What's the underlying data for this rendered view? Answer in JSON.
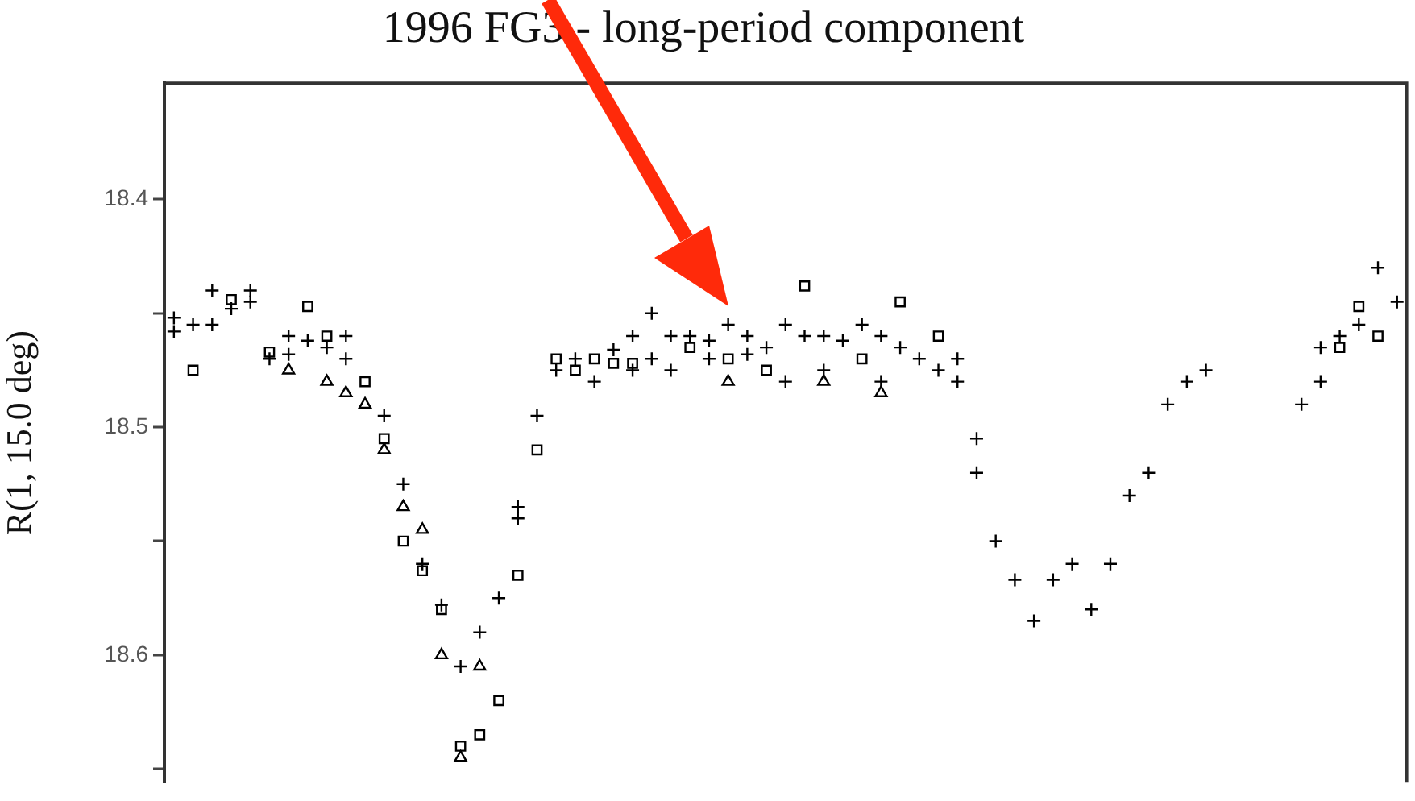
{
  "chart_data": {
    "type": "scatter",
    "title": "1996 FG3 - long-period component",
    "ylabel": "R(1, 15.0 deg)",
    "categories": [
      null,
      null,
      null,
      null,
      null,
      null,
      null,
      null,
      null,
      null,
      null,
      null,
      null,
      null,
      null,
      null,
      null,
      null,
      null,
      null,
      null,
      null,
      null,
      null,
      null,
      null,
      null,
      null,
      null,
      null,
      null,
      null,
      null,
      null,
      null,
      null,
      null,
      null,
      null,
      null,
      null,
      null,
      null,
      null,
      null,
      null,
      null,
      null,
      null,
      null,
      null,
      null,
      null,
      null,
      null,
      null,
      null,
      null,
      null,
      null,
      null,
      null,
      null,
      null,
      null
    ],
    "ylim": [
      18.656,
      18.349
    ],
    "yticks": [
      18.4,
      {
        "value": 18.45,
        "label": null
      },
      18.5,
      {
        "value": 18.55,
        "label": null
      },
      18.6,
      {
        "value": 18.65,
        "label": null
      }
    ],
    "tick_labels": "y",
    "grid": false,
    "legend": false,
    "series": [
      {
        "color": "#000000",
        "marker": "cross",
        "values": [
          18.452,
          18.455,
          18.44,
          18.448,
          18.445,
          18.47,
          18.46,
          null,
          18.465,
          18.46,
          null,
          null,
          null,
          18.56,
          null,
          null,
          null,
          null,
          18.54,
          null,
          null,
          null,
          null,
          18.466,
          18.475,
          18.45,
          18.46,
          18.46,
          18.462,
          18.455,
          18.46,
          18.465,
          18.455,
          18.46,
          18.46,
          18.462,
          18.455,
          18.46,
          18.465,
          18.47,
          18.475,
          18.48,
          18.52,
          18.55,
          18.567,
          18.585,
          18.567,
          18.56,
          18.58,
          18.56,
          18.53,
          18.52,
          18.49,
          18.48,
          18.475,
          null,
          null,
          null,
          null,
          18.49,
          18.48,
          18.46,
          18.455,
          18.43,
          18.445
        ]
      },
      {
        "color": "#000000",
        "marker": "cross",
        "values": [
          18.458,
          null,
          18.455,
          null,
          18.44,
          null,
          18.468,
          18.462,
          null,
          18.47,
          null,
          18.495,
          18.525,
          null,
          18.578,
          18.605,
          18.59,
          18.575,
          18.535,
          18.495,
          18.475,
          18.47,
          18.48,
          null,
          18.46,
          18.47,
          18.475,
          null,
          18.47,
          null,
          18.468,
          null,
          18.48,
          null,
          18.475,
          null,
          null,
          18.48,
          null,
          null,
          null,
          18.47,
          18.505,
          null,
          null,
          null,
          null,
          null,
          null,
          null,
          null,
          null,
          null,
          null,
          null,
          null,
          null,
          null,
          null,
          null,
          18.465,
          null,
          null,
          null,
          null
        ]
      },
      {
        "color": "#000000",
        "marker": "square",
        "values": [
          null,
          18.475,
          null,
          18.444,
          null,
          18.467,
          null,
          18.447,
          18.46,
          null,
          18.48,
          18.505,
          18.55,
          18.563,
          18.58,
          18.64,
          18.635,
          18.62,
          18.565,
          18.51,
          18.47,
          18.475,
          18.47,
          18.472,
          18.472,
          null,
          null,
          18.465,
          null,
          18.47,
          null,
          18.475,
          null,
          18.438,
          null,
          null,
          18.47,
          null,
          18.445,
          null,
          18.46,
          null,
          null,
          null,
          null,
          null,
          null,
          null,
          null,
          null,
          null,
          null,
          null,
          null,
          null,
          null,
          null,
          null,
          null,
          null,
          null,
          18.465,
          18.447,
          18.46,
          null
        ]
      },
      {
        "color": "#000000",
        "marker": "triangle",
        "values": [
          null,
          null,
          null,
          null,
          null,
          null,
          18.475,
          null,
          18.48,
          18.485,
          18.49,
          18.51,
          18.535,
          18.545,
          18.6,
          18.645,
          18.605,
          null,
          null,
          null,
          null,
          null,
          null,
          null,
          null,
          null,
          null,
          null,
          null,
          18.48,
          null,
          null,
          null,
          null,
          18.48,
          null,
          null,
          18.485,
          null,
          null,
          null,
          null,
          null,
          null,
          null,
          null,
          null,
          null,
          null,
          null,
          null,
          null,
          null,
          null,
          null,
          null,
          null,
          null,
          null,
          null,
          null,
          null,
          null,
          null,
          null
        ]
      }
    ]
  }
}
